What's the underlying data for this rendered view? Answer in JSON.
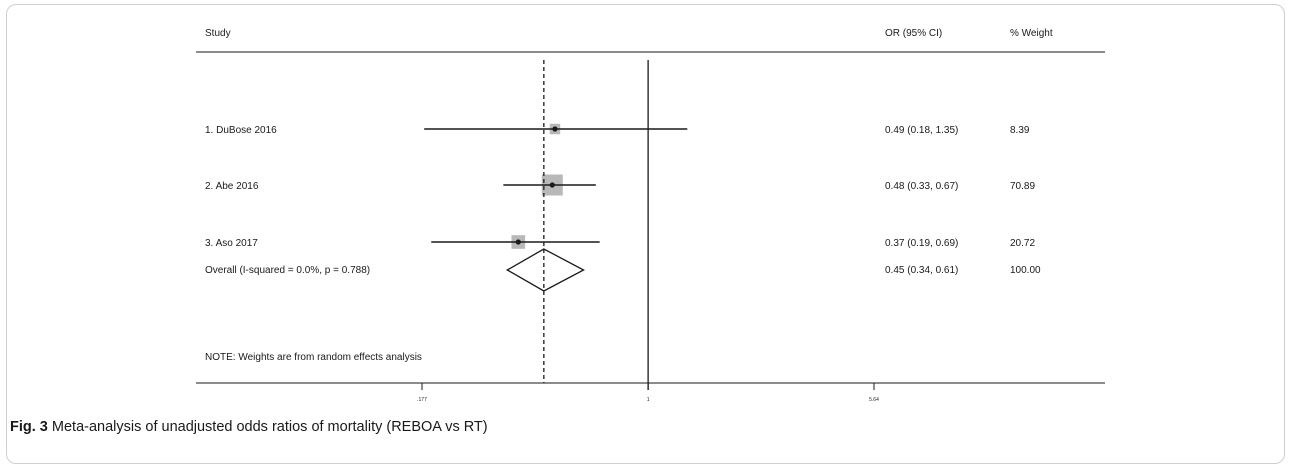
{
  "chart_data": {
    "type": "forest",
    "header": {
      "study": "Study",
      "ci": "OR (95% CI)",
      "weight": "% Weight"
    },
    "studies": [
      {
        "label": "1. DuBose 2016",
        "or": 0.49,
        "lower": 0.18,
        "upper": 1.35,
        "ci_text": "0.49 (0.18, 1.35)",
        "weight": 8.39,
        "weight_text": "8.39",
        "arrow_left": true
      },
      {
        "label": "2. Abe 2016",
        "or": 0.48,
        "lower": 0.33,
        "upper": 0.67,
        "ci_text": "0.48 (0.33, 0.67)",
        "weight": 70.89,
        "weight_text": "70.89",
        "arrow_left": false
      },
      {
        "label": "3. Aso 2017",
        "or": 0.37,
        "lower": 0.19,
        "upper": 0.69,
        "ci_text": "0.37 (0.19, 0.69)",
        "weight": 20.72,
        "weight_text": "20.72",
        "arrow_left": false
      }
    ],
    "overall": {
      "label": "Overall  (I-squared = 0.0%, p = 0.788)",
      "or": 0.45,
      "lower": 0.34,
      "upper": 0.61,
      "ci_text": "0.45 (0.34, 0.61)",
      "weight_text": "100.00"
    },
    "note": "NOTE: Weights are from random effects analysis",
    "x_axis": {
      "scale": "log",
      "null_value": 1,
      "min": 0.177,
      "max": 5.64,
      "ticks": [
        {
          "value": 0.177,
          "label": ".177"
        },
        {
          "value": 1,
          "label": "1"
        },
        {
          "value": 5.64,
          "label": "5.64"
        }
      ]
    },
    "colors": {
      "box": "#b8b8b8",
      "line": "#1a1a1a"
    }
  },
  "caption": {
    "prefix": "Fig. 3",
    "text": " Meta-analysis of unadjusted odds ratios of mortality (REBOA vs RT)"
  }
}
